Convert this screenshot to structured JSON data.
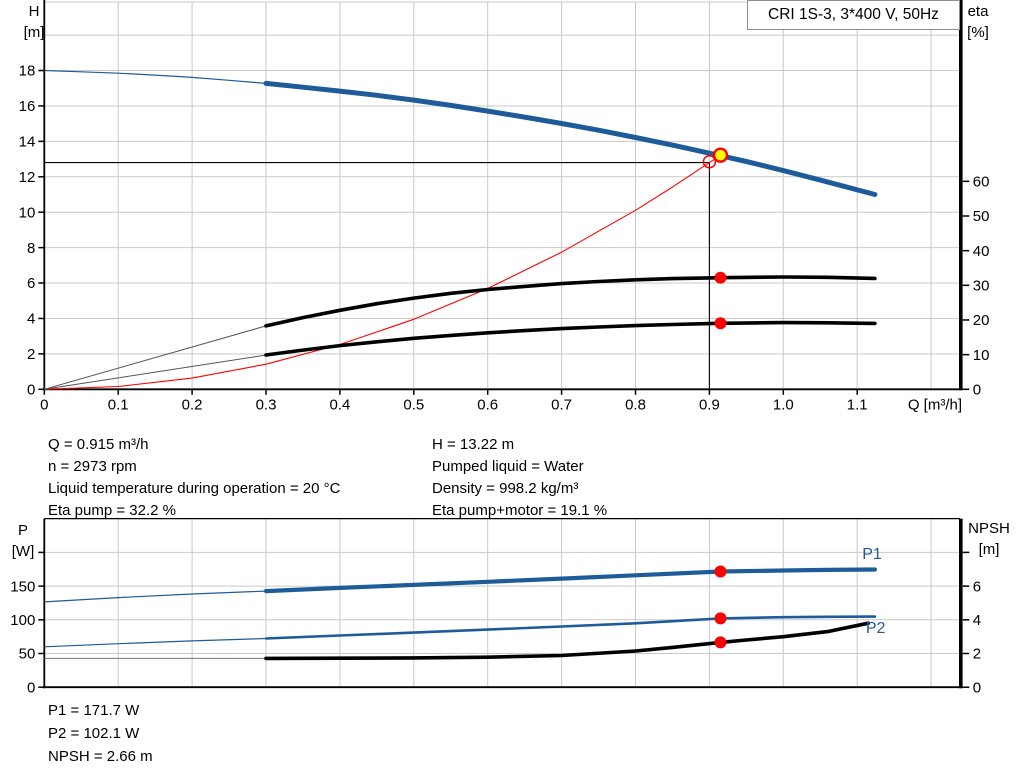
{
  "title_box": {
    "text": "CRI 1S-3, 3*400 V, 50Hz"
  },
  "colors": {
    "curve_blue": "#1d5b99",
    "curve_black": "#000000",
    "curve_red": "#ff0000",
    "duty_yellow": "#ffff00",
    "grid": "#c9c9c9",
    "axis": "#000000",
    "thin_gray": "#555555",
    "npsh_thin_gray": "#777777"
  },
  "axis_corner_labels": {
    "top_left_1": "H",
    "top_left_2": "[m]",
    "top_right_1": "eta",
    "top_right_2": "[%]",
    "bottom_left_1": "P",
    "bottom_left_2": "[W]",
    "bottom_right_1": "NPSH",
    "bottom_right_2": "[m]"
  },
  "readouts": {
    "top_left": [
      "Q = 0.915 m³/h",
      "n = 2973 rpm",
      "Liquid temperature during operation = 20 °C",
      "Eta pump = 32.2 %"
    ],
    "top_right": [
      "H = 13.22 m",
      "Pumped liquid = Water",
      "Density = 998.2 kg/m³",
      "Eta pump+motor = 19.1 %"
    ],
    "bottom": [
      "P1 = 171.7 W",
      "P2 = 102.1 W",
      "NPSH = 2.66 m"
    ]
  },
  "chart_data": [
    {
      "type": "line",
      "title": "CRI 1S-3, 3*400 V, 50Hz",
      "xlabel": "Q [m³/h]",
      "ylabel_left": "H [m]",
      "ylabel_right": "eta [%]",
      "xlim": [
        0,
        1.237
      ],
      "ylim_left": [
        0,
        21.9
      ],
      "ylim_right": [
        0,
        67
      ],
      "grid": true,
      "x_ticks": [
        {
          "v": 0,
          "l": "0"
        },
        {
          "v": 0.1,
          "l": "0.1"
        },
        {
          "v": 0.2,
          "l": "0.2"
        },
        {
          "v": 0.3,
          "l": "0.3"
        },
        {
          "v": 0.4,
          "l": "0.4"
        },
        {
          "v": 0.5,
          "l": "0.5"
        },
        {
          "v": 0.6,
          "l": "0.6"
        },
        {
          "v": 0.7,
          "l": "0.7"
        },
        {
          "v": 0.8,
          "l": "0.8"
        },
        {
          "v": 0.9,
          "l": "0.9"
        },
        {
          "v": 1.0,
          "l": "1.0"
        },
        {
          "v": 1.1,
          "l": "1.1"
        }
      ],
      "left_ticks": [
        {
          "v": 0,
          "l": "0"
        },
        {
          "v": 2,
          "l": "2"
        },
        {
          "v": 4,
          "l": "4"
        },
        {
          "v": 6,
          "l": "6"
        },
        {
          "v": 8,
          "l": "8"
        },
        {
          "v": 10,
          "l": "10"
        },
        {
          "v": 12,
          "l": "12"
        },
        {
          "v": 14,
          "l": "14"
        },
        {
          "v": 16,
          "l": "16"
        },
        {
          "v": 18,
          "l": "18"
        }
      ],
      "right_ticks": [
        {
          "v": 0,
          "l": "0"
        },
        {
          "v": 10,
          "l": "10"
        },
        {
          "v": 20,
          "l": "20"
        },
        {
          "v": 30,
          "l": "30"
        },
        {
          "v": 40,
          "l": "40"
        },
        {
          "v": 50,
          "l": "50"
        },
        {
          "v": 60,
          "l": "60"
        }
      ],
      "grid_x": [
        0.1,
        0.2,
        0.3,
        0.4,
        0.5,
        0.6,
        0.7,
        0.8,
        0.9,
        1.0,
        1.1,
        1.2
      ],
      "grid_y": {
        "scale": "H",
        "values": [
          2,
          4,
          6,
          8,
          10,
          12,
          14,
          16,
          18,
          20
        ]
      },
      "duty_point": {
        "Q": 0.915,
        "H": 13.22,
        "eta_pump": 32.2,
        "eta_pump_motor": 19.1
      },
      "series": [
        {
          "name": "duty-crosshair-horizontal",
          "scale": "H",
          "color": "#000000",
          "width": 1.1,
          "points": [
            [
              0,
              12.8
            ],
            [
              0.9,
              12.8
            ]
          ]
        },
        {
          "name": "duty-crosshair-vertical",
          "scale": "H",
          "color": "#000000",
          "width": 1.1,
          "points": [
            [
              0.9,
              12.8
            ],
            [
              0.9,
              0
            ]
          ]
        },
        {
          "name": "system-curve",
          "scale": "H",
          "color": "#ff0000",
          "width": 1.1,
          "points": [
            [
              0,
              0
            ],
            [
              0.1,
              0.16
            ],
            [
              0.2,
              0.63
            ],
            [
              0.3,
              1.42
            ],
            [
              0.4,
              2.53
            ],
            [
              0.5,
              3.95
            ],
            [
              0.6,
              5.69
            ],
            [
              0.7,
              7.74
            ],
            [
              0.8,
              10.11
            ],
            [
              0.85,
              11.42
            ],
            [
              0.9,
              12.8
            ],
            [
              0.915,
              13.22
            ]
          ]
        },
        {
          "name": "eta-pump-curve-thin",
          "scale": "eta",
          "color": "#555555",
          "width": 1,
          "points": [
            [
              0,
              0
            ],
            [
              0.3,
              18.3
            ]
          ]
        },
        {
          "name": "eta-pump-motor-curve-thin",
          "scale": "eta",
          "color": "#555555",
          "width": 1,
          "points": [
            [
              0,
              0
            ],
            [
              0.3,
              9.9
            ]
          ]
        },
        {
          "name": "eta-pump-curve",
          "scale": "eta",
          "color": "#000000",
          "width": 3.6,
          "points": [
            [
              0.3,
              18.3
            ],
            [
              0.35,
              20.7
            ],
            [
              0.4,
              22.8
            ],
            [
              0.45,
              24.7
            ],
            [
              0.5,
              26.3
            ],
            [
              0.55,
              27.7
            ],
            [
              0.6,
              28.8
            ],
            [
              0.65,
              29.7
            ],
            [
              0.7,
              30.5
            ],
            [
              0.75,
              31.1
            ],
            [
              0.8,
              31.6
            ],
            [
              0.85,
              31.95
            ],
            [
              0.9,
              32.15
            ],
            [
              0.915,
              32.2
            ],
            [
              1.0,
              32.4
            ],
            [
              1.06,
              32.3
            ],
            [
              1.124,
              32.0
            ]
          ]
        },
        {
          "name": "eta-pump-motor-curve",
          "scale": "eta",
          "color": "#000000",
          "width": 3.6,
          "points": [
            [
              0.3,
              9.9
            ],
            [
              0.35,
              11.3
            ],
            [
              0.4,
              12.6
            ],
            [
              0.45,
              13.7
            ],
            [
              0.5,
              14.7
            ],
            [
              0.55,
              15.55
            ],
            [
              0.6,
              16.3
            ],
            [
              0.65,
              16.95
            ],
            [
              0.7,
              17.5
            ],
            [
              0.75,
              17.98
            ],
            [
              0.8,
              18.38
            ],
            [
              0.85,
              18.7
            ],
            [
              0.9,
              18.95
            ],
            [
              0.915,
              19.05
            ],
            [
              1.0,
              19.25
            ],
            [
              1.06,
              19.2
            ],
            [
              1.124,
              19.0
            ]
          ]
        },
        {
          "name": "qh-curve-thin",
          "scale": "H",
          "color": "#1d5b99",
          "width": 1.2,
          "points": [
            [
              0,
              18.0
            ],
            [
              0.05,
              17.93
            ],
            [
              0.1,
              17.85
            ],
            [
              0.15,
              17.74
            ],
            [
              0.2,
              17.61
            ],
            [
              0.25,
              17.45
            ],
            [
              0.3,
              17.27
            ]
          ]
        },
        {
          "name": "qh-curve",
          "scale": "H",
          "color": "#1d5b99",
          "width": 5,
          "points": [
            [
              0.3,
              17.27
            ],
            [
              0.35,
              17.06
            ],
            [
              0.4,
              16.84
            ],
            [
              0.45,
              16.6
            ],
            [
              0.5,
              16.33
            ],
            [
              0.55,
              16.03
            ],
            [
              0.6,
              15.71
            ],
            [
              0.65,
              15.37
            ],
            [
              0.7,
              15.01
            ],
            [
              0.75,
              14.63
            ],
            [
              0.8,
              14.22
            ],
            [
              0.85,
              13.79
            ],
            [
              0.9,
              13.33
            ],
            [
              0.915,
              13.19
            ],
            [
              0.95,
              12.86
            ],
            [
              1.0,
              12.35
            ],
            [
              1.05,
              11.81
            ],
            [
              1.124,
              11.0
            ]
          ]
        }
      ],
      "markers": [
        {
          "name": "system-intersection-point",
          "scale": "H",
          "q": 0.9,
          "v": 12.85,
          "r": 6,
          "fill": "none",
          "stroke": "#ff0000",
          "sw": 1.5
        },
        {
          "name": "duty-point",
          "scale": "H",
          "q": 0.915,
          "v": 13.22,
          "r": 6.5,
          "fill": "#ffff00",
          "stroke": "#ff0000",
          "sw": 2.4
        },
        {
          "name": "eta-pump-duty-point",
          "scale": "eta",
          "q": 0.915,
          "v": 32.2,
          "r": 6,
          "fill": "#ff0000",
          "stroke": "none",
          "sw": 0
        },
        {
          "name": "eta-pump-motor-duty-point",
          "scale": "eta",
          "q": 0.915,
          "v": 19.05,
          "r": 6,
          "fill": "#ff0000",
          "stroke": "none",
          "sw": 0
        }
      ],
      "annotations": []
    },
    {
      "type": "line",
      "title": "",
      "xlabel": "",
      "ylabel_left": "P [W]",
      "ylabel_right": "NPSH [m]",
      "xlim": [
        0,
        1.237
      ],
      "ylim_left": [
        0,
        250
      ],
      "ylim_right": [
        0,
        10
      ],
      "grid": true,
      "x_ticks": [],
      "left_ticks": [
        {
          "v": 0,
          "l": "0"
        },
        {
          "v": 50,
          "l": "50"
        },
        {
          "v": 100,
          "l": "100"
        },
        {
          "v": 150,
          "l": "150"
        },
        {
          "v": 200,
          "l": ""
        }
      ],
      "right_ticks": [
        {
          "v": 0,
          "l": "0"
        },
        {
          "v": 2,
          "l": "2"
        },
        {
          "v": 4,
          "l": "4"
        },
        {
          "v": 6,
          "l": "6"
        },
        {
          "v": 8,
          "l": ""
        }
      ],
      "grid_x": [
        0.1,
        0.2,
        0.3,
        0.4,
        0.5,
        0.6,
        0.7,
        0.8,
        0.9,
        1.0,
        1.1,
        1.2
      ],
      "grid_y": {
        "scale": "P",
        "values": [
          50,
          100,
          150,
          200
        ]
      },
      "duty_point": {
        "Q": 0.915,
        "P1": 171.7,
        "P2": 102.1,
        "NPSH": 2.66
      },
      "series": [
        {
          "name": "npsh-curve-thin",
          "scale": "NPSH",
          "color": "#777777",
          "width": 1,
          "points": [
            [
              0,
              1.71
            ],
            [
              0.3,
              1.71
            ]
          ]
        },
        {
          "name": "npsh-curve",
          "scale": "NPSH",
          "color": "#000000",
          "width": 3.6,
          "points": [
            [
              0.3,
              1.71
            ],
            [
              0.4,
              1.72
            ],
            [
              0.5,
              1.74
            ],
            [
              0.6,
              1.78
            ],
            [
              0.7,
              1.88
            ],
            [
              0.8,
              2.15
            ],
            [
              0.85,
              2.36
            ],
            [
              0.915,
              2.66
            ],
            [
              0.95,
              2.8
            ],
            [
              1.0,
              3.0
            ],
            [
              1.06,
              3.3
            ],
            [
              1.115,
              3.8
            ]
          ]
        },
        {
          "name": "p2-curve-thin",
          "scale": "P",
          "color": "#1d5b99",
          "width": 1.2,
          "points": [
            [
              0,
              60
            ],
            [
              0.1,
              64.6
            ],
            [
              0.2,
              68.7
            ],
            [
              0.3,
              72.3
            ]
          ]
        },
        {
          "name": "p2-curve",
          "scale": "P",
          "color": "#1d5b99",
          "width": 2.6,
          "points": [
            [
              0.3,
              72.3
            ],
            [
              0.4,
              76.7
            ],
            [
              0.5,
              81
            ],
            [
              0.6,
              85.4
            ],
            [
              0.7,
              90
            ],
            [
              0.8,
              94.8
            ],
            [
              0.915,
              102.1
            ],
            [
              1.0,
              103.8
            ],
            [
              1.06,
              104.5
            ],
            [
              1.124,
              104.8
            ]
          ]
        },
        {
          "name": "p1-curve-thin",
          "scale": "P",
          "color": "#1d5b99",
          "width": 1.2,
          "points": [
            [
              0,
              126.6
            ],
            [
              0.1,
              132.9
            ],
            [
              0.2,
              138.3
            ],
            [
              0.3,
              142.6
            ]
          ]
        },
        {
          "name": "p1-curve",
          "scale": "P",
          "color": "#1d5b99",
          "width": 4.2,
          "points": [
            [
              0.3,
              142.6
            ],
            [
              0.4,
              147.3
            ],
            [
              0.5,
              151.8
            ],
            [
              0.6,
              156.4
            ],
            [
              0.7,
              161.2
            ],
            [
              0.8,
              166
            ],
            [
              0.915,
              171.7
            ],
            [
              1.0,
              173.2
            ],
            [
              1.06,
              174
            ],
            [
              1.124,
              174.6
            ]
          ]
        }
      ],
      "markers": [
        {
          "name": "p1-duty-point",
          "scale": "P",
          "q": 0.915,
          "v": 171.7,
          "r": 6,
          "fill": "#ff0000",
          "stroke": "none",
          "sw": 0
        },
        {
          "name": "p2-duty-point",
          "scale": "P",
          "q": 0.915,
          "v": 102.1,
          "r": 6,
          "fill": "#ff0000",
          "stroke": "none",
          "sw": 0
        },
        {
          "name": "npsh-duty-point",
          "scale": "NPSH",
          "q": 0.915,
          "v": 2.66,
          "r": 6,
          "fill": "#ff0000",
          "stroke": "none",
          "sw": 0
        }
      ],
      "annotations": [
        {
          "text": "P1",
          "q": 1.12,
          "scale": "P",
          "v": 190.0,
          "color": "#1d5b99"
        },
        {
          "text": "P2",
          "q": 1.125,
          "scale": "P",
          "v": 80.4,
          "color": "#1d5b99"
        }
      ]
    }
  ]
}
